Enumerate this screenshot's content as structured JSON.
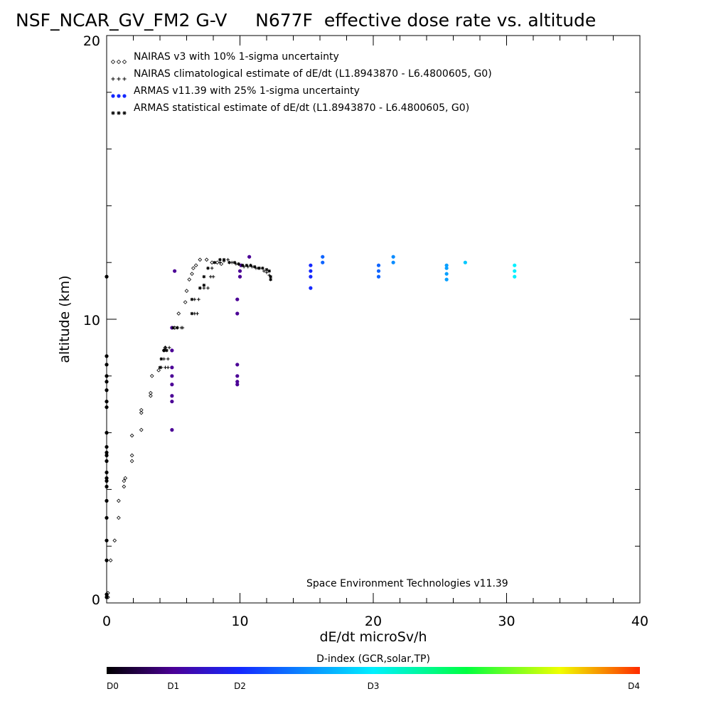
{
  "chart_data": {
    "type": "scatter",
    "title": "NSF_NCAR_GV_FM2 G-V     N677F  effective dose rate vs. altitude",
    "xlabel": "dE/dt microSv/h",
    "ylabel": "altitude (km)",
    "xlim": [
      0,
      40
    ],
    "ylim": [
      0,
      20
    ],
    "x_ticks": [
      "0",
      "10",
      "20",
      "30",
      "40"
    ],
    "y_ticks": [
      "0",
      "10",
      "20"
    ],
    "grid": false,
    "legend_position": "top-left",
    "credit": "Space Environment Technologies v11.39",
    "colorbar": {
      "title": "D-index (GCR,solar,TP)",
      "labels": [
        {
          "text": "D0",
          "value": 0
        },
        {
          "text": "D1",
          "value": 0.25
        },
        {
          "text": "D2",
          "value": 0.5
        },
        {
          "text": "D3",
          "value": 1.0
        },
        {
          "text": "D4",
          "value": 2.0
        }
      ],
      "stops": [
        {
          "value": 0,
          "color": "#000000"
        },
        {
          "value": 0.25,
          "color": "#4b0096"
        },
        {
          "value": 0.5,
          "color": "#1428ff"
        },
        {
          "value": 1.0,
          "color": "#00f0ff"
        },
        {
          "value": 1.35,
          "color": "#00ff40"
        },
        {
          "value": 1.7,
          "color": "#f0ff00"
        },
        {
          "value": 2.0,
          "color": "#ff2a00"
        }
      ],
      "range": [
        0,
        2
      ]
    },
    "series": [
      {
        "name": "NAIRAS v3 with 10% 1-sigma uncertainty",
        "marker": "diamond",
        "points": [
          [
            0.1,
            0.2
          ],
          [
            0.1,
            0.35
          ],
          [
            0.3,
            1.5
          ],
          [
            0.6,
            2.2
          ],
          [
            0.9,
            3.0
          ],
          [
            0.9,
            3.6
          ],
          [
            1.3,
            4.1
          ],
          [
            1.3,
            4.3
          ],
          [
            1.4,
            4.4
          ],
          [
            1.9,
            5.0
          ],
          [
            1.9,
            5.2
          ],
          [
            1.9,
            5.9
          ],
          [
            2.6,
            6.1
          ],
          [
            2.6,
            6.7
          ],
          [
            2.6,
            6.8
          ],
          [
            3.3,
            7.3
          ],
          [
            3.3,
            7.4
          ],
          [
            3.4,
            8.0
          ],
          [
            3.9,
            8.2
          ],
          [
            4.3,
            8.9
          ],
          [
            4.4,
            9.0
          ],
          [
            5.1,
            9.7
          ],
          [
            5.4,
            10.2
          ],
          [
            5.9,
            10.6
          ],
          [
            6.0,
            11.0
          ],
          [
            6.2,
            11.4
          ],
          [
            6.4,
            11.6
          ],
          [
            6.5,
            11.8
          ],
          [
            6.7,
            11.9
          ],
          [
            7.0,
            12.1
          ],
          [
            7.5,
            12.1
          ],
          [
            7.9,
            12.0
          ],
          [
            8.3,
            12.0
          ],
          [
            8.6,
            11.95
          ]
        ]
      },
      {
        "name": "NAIRAS climatological estimate of dE/dt (L1.8943870 - L6.4800605, G0)",
        "marker": "plus",
        "points": [
          [
            4.1,
            8.3
          ],
          [
            4.4,
            8.3
          ],
          [
            4.6,
            8.3
          ],
          [
            4.3,
            8.6
          ],
          [
            4.6,
            8.6
          ],
          [
            4.4,
            9.0
          ],
          [
            4.7,
            9.0
          ],
          [
            5.3,
            9.7
          ],
          [
            5.6,
            9.7
          ],
          [
            5.7,
            9.7
          ],
          [
            6.6,
            10.2
          ],
          [
            6.8,
            10.2
          ],
          [
            6.6,
            10.7
          ],
          [
            6.9,
            10.7
          ],
          [
            7.3,
            11.1
          ],
          [
            7.6,
            11.1
          ],
          [
            7.8,
            11.5
          ],
          [
            8.0,
            11.5
          ],
          [
            7.9,
            11.8
          ],
          [
            8.5,
            12.0
          ],
          [
            8.8,
            12.05
          ],
          [
            9.1,
            12.1
          ],
          [
            9.4,
            12.0
          ],
          [
            9.7,
            11.95
          ],
          [
            10.0,
            11.9
          ],
          [
            10.3,
            11.85
          ],
          [
            10.6,
            11.85
          ],
          [
            10.9,
            11.85
          ],
          [
            11.2,
            11.8
          ],
          [
            11.5,
            11.8
          ],
          [
            11.8,
            11.7
          ],
          [
            12.0,
            11.65
          ],
          [
            12.2,
            11.55
          ]
        ]
      },
      {
        "name": "ARMAS v11.39 with 25% 1-sigma uncertainty",
        "marker": "circle",
        "points": [
          [
            0.0,
            0.2,
            0
          ],
          [
            0.0,
            0.3,
            0
          ],
          [
            0.0,
            1.5,
            0
          ],
          [
            0.0,
            2.2,
            0
          ],
          [
            0.0,
            3.0,
            0
          ],
          [
            0.0,
            3.6,
            0
          ],
          [
            0.0,
            4.1,
            0
          ],
          [
            0.0,
            4.3,
            0
          ],
          [
            0.0,
            4.4,
            0
          ],
          [
            0.0,
            4.6,
            0
          ],
          [
            0.0,
            5.0,
            0
          ],
          [
            0.0,
            5.2,
            0
          ],
          [
            0.0,
            5.3,
            0
          ],
          [
            0.0,
            5.5,
            0
          ],
          [
            0.0,
            6.0,
            0
          ],
          [
            0.0,
            6.9,
            0
          ],
          [
            0.0,
            7.1,
            0
          ],
          [
            0.0,
            7.5,
            0
          ],
          [
            0.0,
            7.8,
            0
          ],
          [
            0.0,
            8.0,
            0
          ],
          [
            0.0,
            8.4,
            0
          ],
          [
            0.0,
            8.7,
            0
          ],
          [
            0.0,
            11.5,
            0
          ],
          [
            4.9,
            6.1,
            0.25
          ],
          [
            4.9,
            7.1,
            0.25
          ],
          [
            4.9,
            7.3,
            0.25
          ],
          [
            4.9,
            7.7,
            0.25
          ],
          [
            4.9,
            8.0,
            0.25
          ],
          [
            4.9,
            8.3,
            0.25
          ],
          [
            4.9,
            8.9,
            0.25
          ],
          [
            4.9,
            9.7,
            0.25
          ],
          [
            5.1,
            11.7,
            0.25
          ],
          [
            9.8,
            7.7,
            0.25
          ],
          [
            9.8,
            7.8,
            0.25
          ],
          [
            9.8,
            8.0,
            0.25
          ],
          [
            9.8,
            8.4,
            0.25
          ],
          [
            9.8,
            10.2,
            0.25
          ],
          [
            9.8,
            10.7,
            0.25
          ],
          [
            10.0,
            11.5,
            0.25
          ],
          [
            10.0,
            11.7,
            0.25
          ],
          [
            10.1,
            11.9,
            0.25
          ],
          [
            10.7,
            12.2,
            0.25
          ],
          [
            15.3,
            11.1,
            0.5
          ],
          [
            15.3,
            11.5,
            0.5
          ],
          [
            15.3,
            11.7,
            0.5
          ],
          [
            15.3,
            11.9,
            0.5
          ],
          [
            16.2,
            12.0,
            0.65
          ],
          [
            16.2,
            12.2,
            0.65
          ],
          [
            20.4,
            11.5,
            0.65
          ],
          [
            20.4,
            11.7,
            0.65
          ],
          [
            20.4,
            11.9,
            0.65
          ],
          [
            21.5,
            12.0,
            0.75
          ],
          [
            21.5,
            12.2,
            0.75
          ],
          [
            25.5,
            11.4,
            0.8
          ],
          [
            25.5,
            11.6,
            0.8
          ],
          [
            25.5,
            11.8,
            0.8
          ],
          [
            25.5,
            11.9,
            0.8
          ],
          [
            26.9,
            12.0,
            0.9
          ],
          [
            30.6,
            11.5,
            1.0
          ],
          [
            30.6,
            11.7,
            1.0
          ],
          [
            30.6,
            11.9,
            1.0
          ]
        ]
      },
      {
        "name": "ARMAS statistical estimate of dE/dt (L1.8943870 - L6.4800605, G0)",
        "marker": "asterisk",
        "points": [
          [
            4.1,
            8.6
          ],
          [
            4.3,
            8.9
          ],
          [
            4.5,
            8.9
          ],
          [
            4.0,
            8.3
          ],
          [
            5.0,
            9.7
          ],
          [
            5.3,
            9.7
          ],
          [
            6.4,
            10.2
          ],
          [
            6.4,
            10.7
          ],
          [
            7.0,
            11.1
          ],
          [
            7.3,
            11.5
          ],
          [
            7.6,
            11.8
          ],
          [
            7.3,
            11.2
          ],
          [
            8.1,
            12.0
          ],
          [
            8.5,
            12.1
          ],
          [
            8.8,
            12.1
          ],
          [
            9.2,
            12.0
          ],
          [
            9.6,
            12.0
          ],
          [
            9.9,
            11.95
          ],
          [
            10.2,
            11.9
          ],
          [
            10.5,
            11.9
          ],
          [
            10.8,
            11.9
          ],
          [
            11.1,
            11.85
          ],
          [
            11.4,
            11.8
          ],
          [
            11.7,
            11.8
          ],
          [
            12.0,
            11.75
          ],
          [
            12.2,
            11.7
          ],
          [
            12.3,
            11.5
          ],
          [
            12.3,
            11.4
          ]
        ]
      }
    ]
  }
}
